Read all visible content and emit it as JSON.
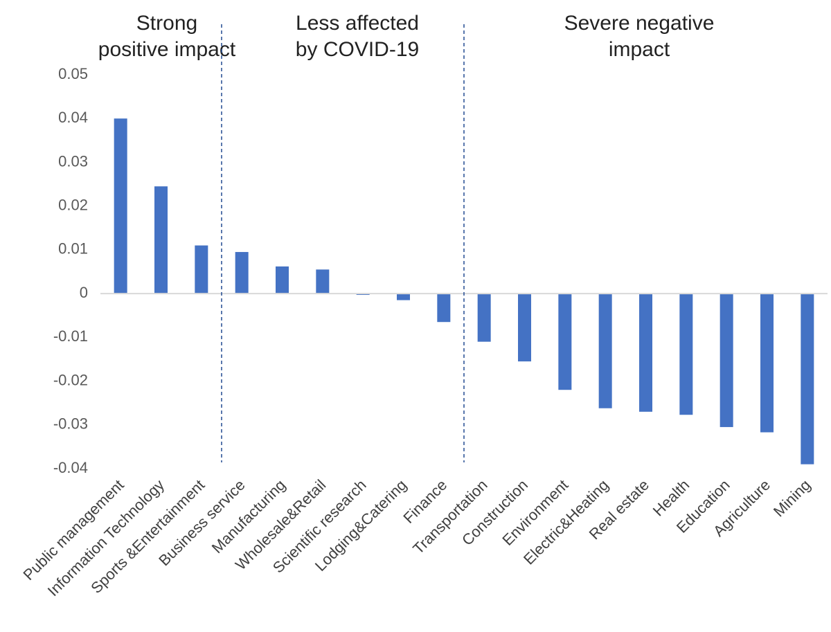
{
  "chart_data": {
    "type": "bar",
    "categories": [
      "Public management",
      "Information Technology",
      "Sports &Entertainment",
      "Business service",
      "Manufacturing",
      "Wholesale&Retail",
      "Scientific research",
      "Lodging&Catering",
      "Finance",
      "Transportation",
      "Construction",
      "Environment",
      "Electric&Heating",
      "Real estate",
      "Health",
      "Education",
      "Agriculture",
      "Mining"
    ],
    "values": [
      0.04,
      0.0245,
      0.011,
      0.0095,
      0.0062,
      0.0055,
      -0.0003,
      -0.0015,
      -0.0065,
      -0.011,
      -0.0155,
      -0.022,
      -0.0262,
      -0.027,
      -0.0277,
      -0.0305,
      -0.0317,
      -0.039
    ],
    "yticks": [
      "0.05",
      "0.04",
      "0.03",
      "0.02",
      "0.01",
      "0",
      "-0.01",
      "-0.02",
      "-0.03",
      "-0.04"
    ],
    "ylim": [
      -0.04,
      0.05
    ],
    "bar_color": "#4472C4",
    "divider_color": "#2F5597",
    "dividers_after_category_index": [
      2,
      8
    ],
    "regions": [
      {
        "lines": [
          "Strong",
          "positive impact"
        ]
      },
      {
        "lines": [
          "Less affected",
          "by COVID-19"
        ]
      },
      {
        "lines": [
          "Severe negative",
          "impact"
        ]
      }
    ],
    "grid": false,
    "legend": "none"
  }
}
